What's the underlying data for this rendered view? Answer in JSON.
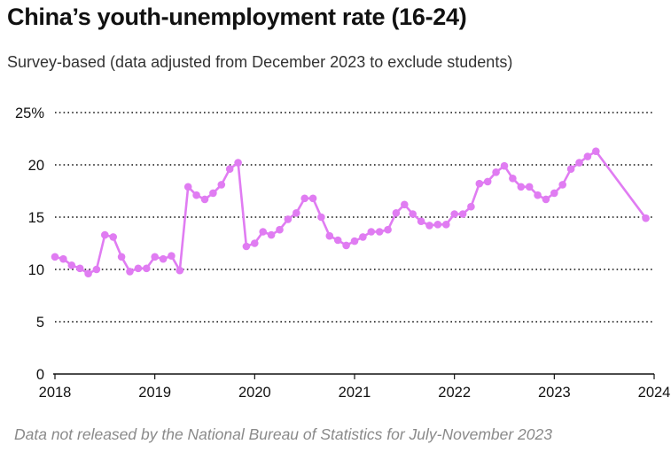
{
  "header": {
    "title": "China’s youth-unemployment rate (16-24)",
    "subtitle": "Survey-based (data adjusted from December 2023 to exclude students)"
  },
  "footnote": "Data not released by the National Bureau of Statistics for July-November 2023",
  "colors": {
    "series": "#e07cf2",
    "grid": "#111111",
    "axis": "#111111"
  },
  "chart_data": {
    "type": "line",
    "title": "China’s youth-unemployment rate (16-24)",
    "subtitle": "Survey-based (data adjusted from December 2023 to exclude students)",
    "xlabel": "",
    "ylabel": "",
    "xlim": [
      2018,
      2024
    ],
    "ylim": [
      0,
      25
    ],
    "grid": true,
    "legend": "none",
    "x_ticks": [
      {
        "value": 2018,
        "label": "2018"
      },
      {
        "value": 2019,
        "label": "2019"
      },
      {
        "value": 2020,
        "label": "2020"
      },
      {
        "value": 2021,
        "label": "2021"
      },
      {
        "value": 2022,
        "label": "2022"
      },
      {
        "value": 2023,
        "label": "2023"
      },
      {
        "value": 2024,
        "label": "2024"
      }
    ],
    "y_ticks": [
      {
        "value": 0,
        "label": "0"
      },
      {
        "value": 5,
        "label": "5"
      },
      {
        "value": 10,
        "label": "10"
      },
      {
        "value": 15,
        "label": "15"
      },
      {
        "value": 20,
        "label": "20"
      },
      {
        "value": 25,
        "label": "25%"
      }
    ],
    "series": [
      {
        "x": [
          "2018-01",
          "2018-02",
          "2018-03",
          "2018-04",
          "2018-05",
          "2018-06",
          "2018-07",
          "2018-08",
          "2018-09",
          "2018-10",
          "2018-11",
          "2018-12",
          "2019-01",
          "2019-02",
          "2019-03",
          "2019-04",
          "2019-05",
          "2019-06",
          "2019-07",
          "2019-08",
          "2019-09",
          "2019-10",
          "2019-11",
          "2019-12",
          "2020-01",
          "2020-02",
          "2020-03",
          "2020-04",
          "2020-05",
          "2020-06",
          "2020-07",
          "2020-08",
          "2020-09",
          "2020-10",
          "2020-11",
          "2020-12",
          "2021-01",
          "2021-02",
          "2021-03",
          "2021-04",
          "2021-05",
          "2021-06",
          "2021-07",
          "2021-08",
          "2021-09",
          "2021-10",
          "2021-11",
          "2021-12",
          "2022-01",
          "2022-02",
          "2022-03",
          "2022-04",
          "2022-05",
          "2022-06",
          "2022-07",
          "2022-08",
          "2022-09",
          "2022-10",
          "2022-11",
          "2022-12",
          "2023-01",
          "2023-02",
          "2023-03",
          "2023-04",
          "2023-05",
          "2023-06",
          "2023-12"
        ],
        "values": [
          11.2,
          11.0,
          10.4,
          10.1,
          9.6,
          10.0,
          13.3,
          13.1,
          11.2,
          9.8,
          10.1,
          10.1,
          11.2,
          11.0,
          11.3,
          9.9,
          17.9,
          17.1,
          16.7,
          17.3,
          18.1,
          19.6,
          20.2,
          12.2,
          12.5,
          13.6,
          13.3,
          13.8,
          14.8,
          15.4,
          16.8,
          16.8,
          15.0,
          13.2,
          12.8,
          12.3,
          12.7,
          13.1,
          13.6,
          13.6,
          13.8,
          15.4,
          16.2,
          15.3,
          14.6,
          14.2,
          14.3,
          14.3,
          15.3,
          15.3,
          16.0,
          18.2,
          18.4,
          19.3,
          19.9,
          18.7,
          17.9,
          17.9,
          17.1,
          16.7,
          17.3,
          18.1,
          19.6,
          20.2,
          20.8,
          21.3,
          14.9
        ]
      }
    ]
  }
}
